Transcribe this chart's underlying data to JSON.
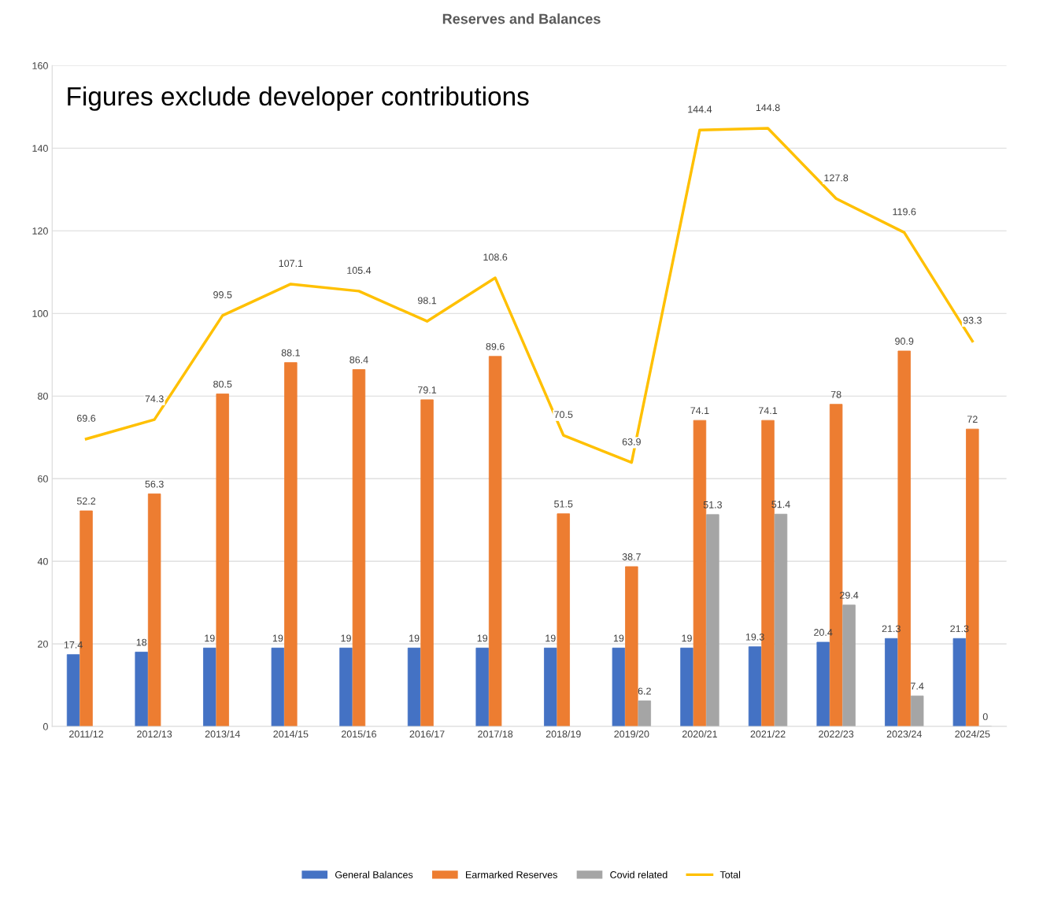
{
  "chart_data": {
    "type": "bar",
    "title": "Reserves and Balances",
    "annotations": [
      "Figures exclude developer contributions"
    ],
    "categories": [
      "2011/12",
      "2012/13",
      "2013/14",
      "2014/15",
      "2015/16",
      "2016/17",
      "2017/18",
      "2018/19",
      "2019/20",
      "2020/21",
      "2021/22",
      "2022/23",
      "2023/24",
      "2024/25"
    ],
    "series": [
      {
        "name": "General Balances",
        "color": "#4472c4",
        "values": [
          17.4,
          18,
          19,
          19,
          19,
          19,
          19,
          19,
          19,
          19,
          19.3,
          20.4,
          21.3,
          21.3
        ]
      },
      {
        "name": "Earmarked Reserves",
        "color": "#ed7d31",
        "values": [
          52.2,
          56.3,
          80.5,
          88.1,
          86.4,
          79.1,
          89.6,
          51.5,
          38.7,
          74.1,
          74.1,
          78,
          90.9,
          72
        ]
      },
      {
        "name": "Covid related",
        "color": "#a5a5a5",
        "values": [
          null,
          null,
          null,
          null,
          null,
          null,
          null,
          null,
          6.2,
          51.3,
          51.4,
          29.4,
          7.4,
          0
        ]
      },
      {
        "name": "Total",
        "type": "line",
        "color": "#ffc000",
        "values": [
          69.6,
          74.3,
          99.5,
          107.1,
          105.4,
          98.1,
          108.6,
          70.5,
          63.9,
          144.4,
          144.8,
          127.8,
          119.6,
          93.3
        ]
      }
    ],
    "ylim": [
      0,
      160
    ],
    "yticks": [
      0,
      20,
      40,
      60,
      80,
      100,
      120,
      140,
      160
    ],
    "grid": "y",
    "legend": "bottom",
    "data_labels": true,
    "marker": "none"
  }
}
